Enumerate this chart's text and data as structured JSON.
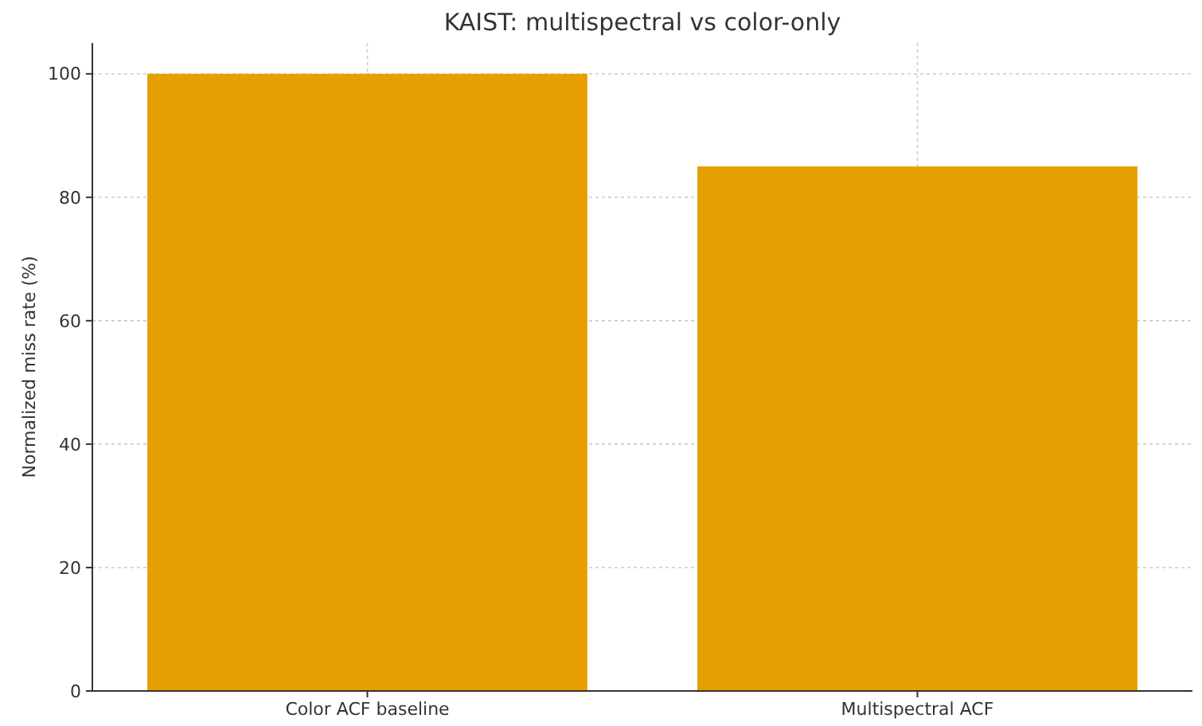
{
  "chart_data": {
    "type": "bar",
    "title": "KAIST: multispectral vs color-only",
    "ylabel": "Normalized miss rate (%)",
    "categories": [
      "Color ACF baseline",
      "Multispectral ACF"
    ],
    "values": [
      100,
      85
    ],
    "color": "#e69f00",
    "ylim": [
      0,
      105
    ],
    "yticks": [
      0,
      20,
      40,
      60,
      80,
      100
    ],
    "grid": true
  }
}
